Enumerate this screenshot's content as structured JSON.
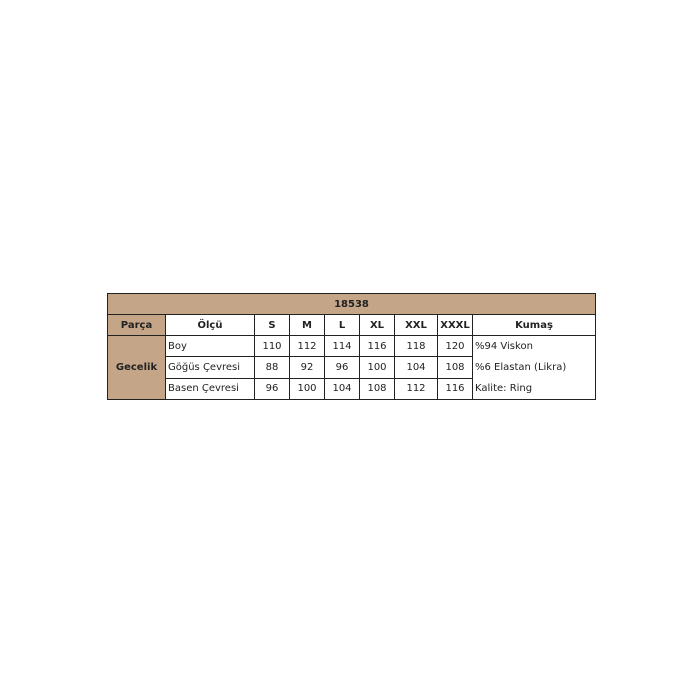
{
  "table": {
    "title": "18538",
    "headers": [
      "Parça",
      "Ölçü",
      "S",
      "M",
      "L",
      "XL",
      "XXL",
      "XXXL",
      "Kumaş"
    ],
    "part": "Gecelik",
    "rows": [
      {
        "label": "Boy",
        "values": [
          "110",
          "112",
          "114",
          "116",
          "118",
          "120"
        ]
      },
      {
        "label": "Göğüs Çevresi",
        "values": [
          "88",
          "92",
          "96",
          "100",
          "104",
          "108"
        ]
      },
      {
        "label": "Basen Çevresi",
        "values": [
          "96",
          "100",
          "104",
          "108",
          "112",
          "116"
        ]
      }
    ],
    "fabric": [
      "%94 Viskon",
      "%6 Elastan (Likra)",
      "Kalite: Ring"
    ],
    "accent_color": "#c4a588"
  }
}
